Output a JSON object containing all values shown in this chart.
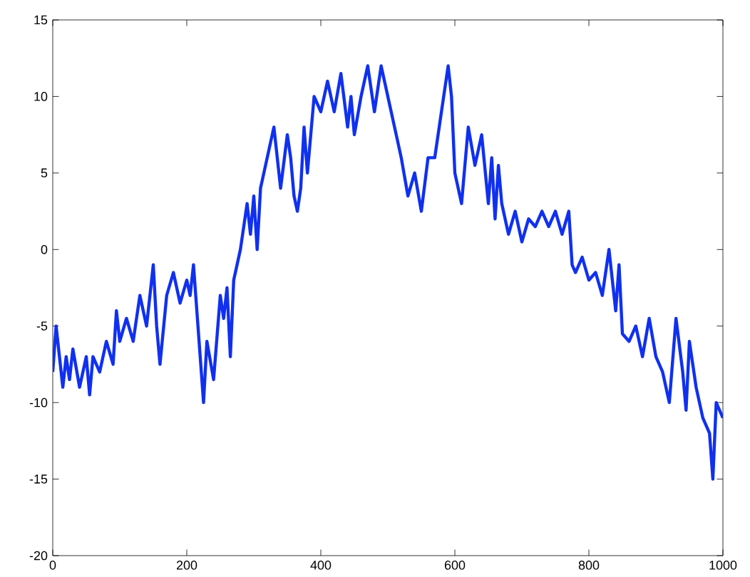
{
  "chart_data": {
    "type": "line",
    "color": "#1030f0",
    "xlim": [
      0,
      1000
    ],
    "ylim": [
      -20,
      15
    ],
    "xticks": [
      0,
      200,
      400,
      600,
      800,
      1000
    ],
    "yticks": [
      -20,
      -15,
      -10,
      -5,
      0,
      5,
      10,
      15
    ],
    "grid": false,
    "marker": "none",
    "line_style": "solid",
    "x": [
      0,
      5,
      10,
      15,
      20,
      25,
      30,
      40,
      50,
      55,
      60,
      70,
      80,
      90,
      95,
      100,
      110,
      120,
      130,
      140,
      150,
      155,
      160,
      170,
      180,
      190,
      200,
      205,
      210,
      215,
      220,
      225,
      230,
      240,
      250,
      255,
      260,
      265,
      270,
      280,
      290,
      295,
      300,
      305,
      310,
      320,
      330,
      340,
      350,
      355,
      360,
      365,
      370,
      375,
      380,
      390,
      400,
      410,
      420,
      430,
      440,
      445,
      450,
      460,
      470,
      480,
      490,
      500,
      510,
      520,
      530,
      540,
      550,
      560,
      570,
      580,
      590,
      595,
      600,
      610,
      620,
      630,
      640,
      650,
      655,
      660,
      665,
      670,
      680,
      690,
      700,
      710,
      720,
      730,
      740,
      750,
      760,
      770,
      775,
      780,
      790,
      800,
      810,
      820,
      830,
      835,
      840,
      845,
      850,
      860,
      870,
      880,
      890,
      900,
      910,
      920,
      930,
      940,
      945,
      950,
      960,
      970,
      980,
      985,
      990,
      1000
    ],
    "values": [
      -8,
      -5,
      -7,
      -9,
      -7,
      -8.5,
      -6.5,
      -9,
      -7,
      -9.5,
      -7,
      -8,
      -6,
      -7.5,
      -4,
      -6,
      -4.5,
      -6,
      -3,
      -5,
      -1,
      -5,
      -7.5,
      -3,
      -1.5,
      -3.5,
      -2,
      -3,
      -1,
      -4,
      -7,
      -10,
      -6,
      -8.5,
      -3,
      -4.5,
      -2.5,
      -7,
      -2,
      0,
      3,
      1,
      3.5,
      0,
      4,
      6,
      8,
      4,
      7.5,
      6,
      3.5,
      2.5,
      4,
      8,
      5,
      10,
      9,
      11,
      9,
      11.5,
      8,
      10,
      7.5,
      10,
      12,
      9,
      12,
      10,
      8,
      6,
      3.5,
      5,
      2.5,
      6,
      6,
      9,
      12,
      10,
      5,
      3,
      8,
      5.5,
      7.5,
      3,
      6,
      2,
      5.5,
      3,
      1,
      2.5,
      0.5,
      2,
      1.5,
      2.5,
      1.5,
      2.5,
      1,
      2.5,
      -1,
      -1.5,
      -0.5,
      -2,
      -1.5,
      -3,
      0,
      -2,
      -4,
      -1,
      -5.5,
      -6,
      -5,
      -7,
      -4.5,
      -7,
      -8,
      -10,
      -4.5,
      -8,
      -10.5,
      -6,
      -9,
      -11,
      -12,
      -15,
      -10,
      -11
    ]
  }
}
